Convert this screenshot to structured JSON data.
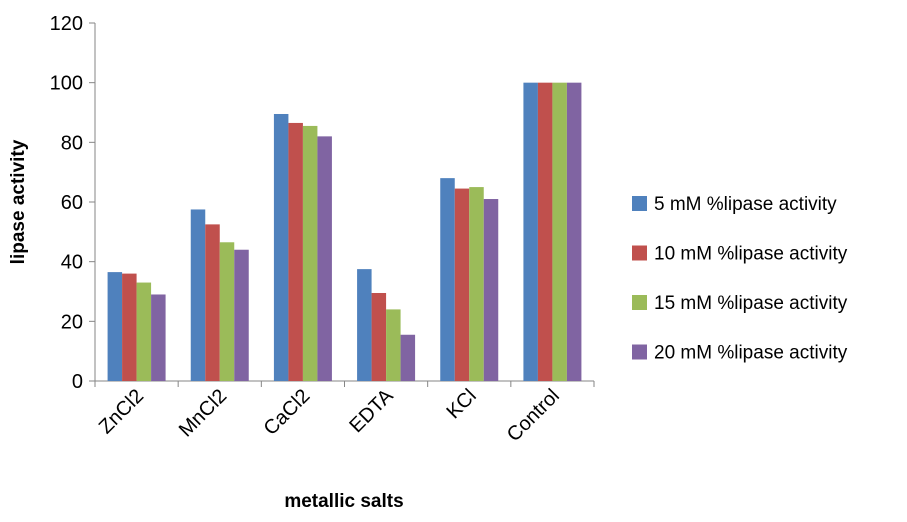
{
  "chart_data": {
    "type": "bar",
    "categories": [
      "ZnCl2",
      "MnCl2",
      "CaCl2",
      "EDTA",
      "KCl",
      "Control"
    ],
    "series": [
      {
        "name": "5 mM %lipase activity",
        "color": "#4F81BD",
        "values": [
          36.5,
          57.5,
          89.5,
          37.5,
          68,
          100
        ]
      },
      {
        "name": "10 mM %lipase activity",
        "color": "#C0504D",
        "values": [
          36,
          52.5,
          86.5,
          29.5,
          64.5,
          100
        ]
      },
      {
        "name": "15 mM %lipase activity",
        "color": "#9BBB59",
        "values": [
          33,
          46.5,
          85.5,
          24,
          65,
          100
        ]
      },
      {
        "name": "20 mM %lipase activity",
        "color": "#8064A2",
        "values": [
          29,
          44,
          82,
          15.5,
          61,
          100
        ]
      }
    ],
    "xlabel": "metallic salts",
    "ylabel": "lipase activity",
    "ylim": [
      0,
      120
    ],
    "yticks": [
      0,
      20,
      40,
      60,
      80,
      100,
      120
    ],
    "grid": false,
    "legend": "right"
  }
}
